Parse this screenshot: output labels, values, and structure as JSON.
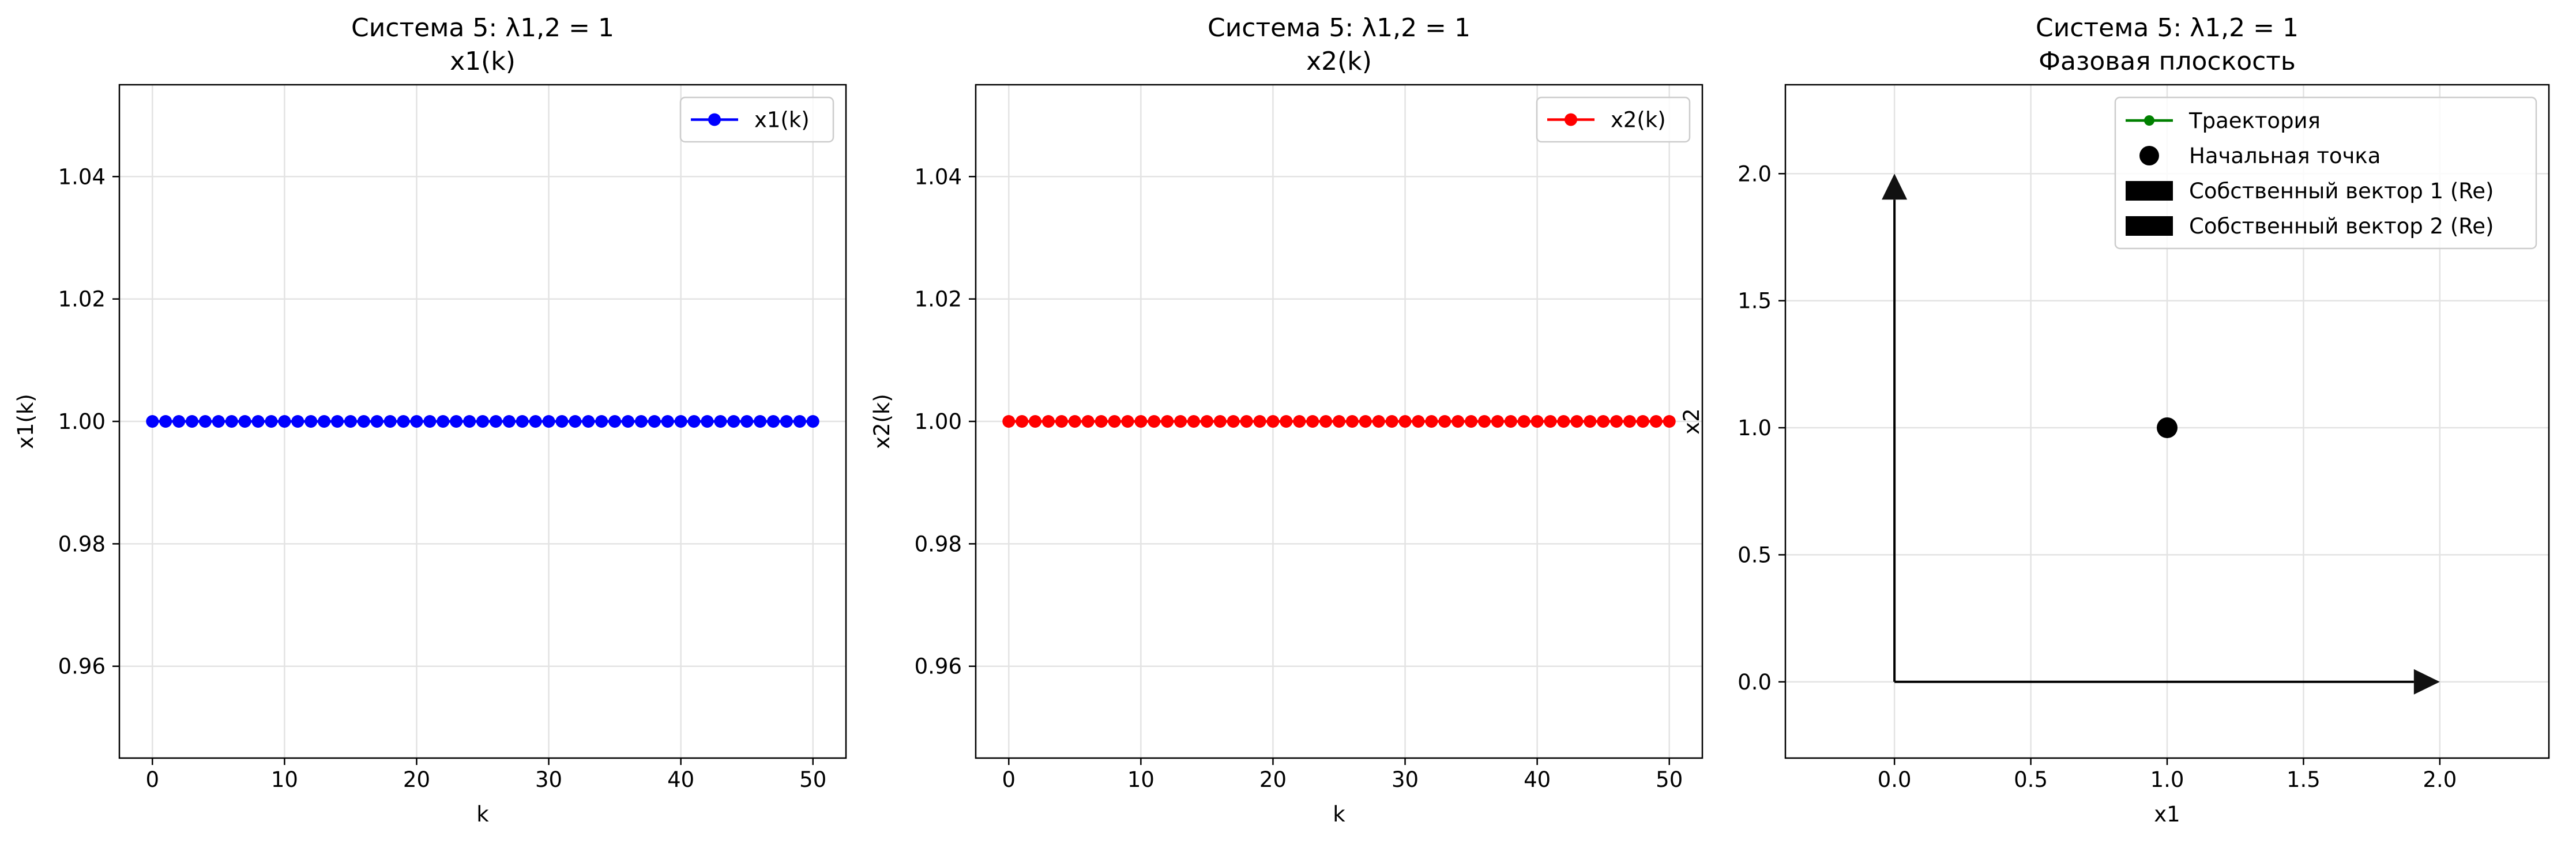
{
  "chart_data": [
    {
      "type": "line",
      "title": "Система 5: λ1,2 = 1",
      "subtitle": "x1(k)",
      "xlabel": "k",
      "ylabel": "x1(k)",
      "xlim": [
        -2.5,
        52.5
      ],
      "ylim": [
        0.945,
        1.055
      ],
      "xticks": [
        0,
        10,
        20,
        30,
        40,
        50
      ],
      "xtick_labels": [
        "0",
        "10",
        "20",
        "30",
        "40",
        "50"
      ],
      "yticks": [
        0.96,
        0.98,
        1.0,
        1.02,
        1.04
      ],
      "ytick_labels": [
        "0.96",
        "0.98",
        "1.00",
        "1.02",
        "1.04"
      ],
      "grid": true,
      "legend_position": "top-right",
      "series": [
        {
          "name": "x1(k)",
          "color": "#0000ff",
          "marker": "circle",
          "x": [
            0,
            1,
            2,
            3,
            4,
            5,
            6,
            7,
            8,
            9,
            10,
            11,
            12,
            13,
            14,
            15,
            16,
            17,
            18,
            19,
            20,
            21,
            22,
            23,
            24,
            25,
            26,
            27,
            28,
            29,
            30,
            31,
            32,
            33,
            34,
            35,
            36,
            37,
            38,
            39,
            40,
            41,
            42,
            43,
            44,
            45,
            46,
            47,
            48,
            49,
            50
          ],
          "y": [
            1,
            1,
            1,
            1,
            1,
            1,
            1,
            1,
            1,
            1,
            1,
            1,
            1,
            1,
            1,
            1,
            1,
            1,
            1,
            1,
            1,
            1,
            1,
            1,
            1,
            1,
            1,
            1,
            1,
            1,
            1,
            1,
            1,
            1,
            1,
            1,
            1,
            1,
            1,
            1,
            1,
            1,
            1,
            1,
            1,
            1,
            1,
            1,
            1,
            1,
            1
          ]
        }
      ]
    },
    {
      "type": "line",
      "title": "Система 5: λ1,2 = 1",
      "subtitle": "x2(k)",
      "xlabel": "k",
      "ylabel": "x2(k)",
      "xlim": [
        -2.5,
        52.5
      ],
      "ylim": [
        0.945,
        1.055
      ],
      "xticks": [
        0,
        10,
        20,
        30,
        40,
        50
      ],
      "xtick_labels": [
        "0",
        "10",
        "20",
        "30",
        "40",
        "50"
      ],
      "yticks": [
        0.96,
        0.98,
        1.0,
        1.02,
        1.04
      ],
      "ytick_labels": [
        "0.96",
        "0.98",
        "1.00",
        "1.02",
        "1.04"
      ],
      "grid": true,
      "legend_position": "top-right",
      "series": [
        {
          "name": "x2(k)",
          "color": "#ff0000",
          "marker": "circle",
          "x": [
            0,
            1,
            2,
            3,
            4,
            5,
            6,
            7,
            8,
            9,
            10,
            11,
            12,
            13,
            14,
            15,
            16,
            17,
            18,
            19,
            20,
            21,
            22,
            23,
            24,
            25,
            26,
            27,
            28,
            29,
            30,
            31,
            32,
            33,
            34,
            35,
            36,
            37,
            38,
            39,
            40,
            41,
            42,
            43,
            44,
            45,
            46,
            47,
            48,
            49,
            50
          ],
          "y": [
            1,
            1,
            1,
            1,
            1,
            1,
            1,
            1,
            1,
            1,
            1,
            1,
            1,
            1,
            1,
            1,
            1,
            1,
            1,
            1,
            1,
            1,
            1,
            1,
            1,
            1,
            1,
            1,
            1,
            1,
            1,
            1,
            1,
            1,
            1,
            1,
            1,
            1,
            1,
            1,
            1,
            1,
            1,
            1,
            1,
            1,
            1,
            1,
            1,
            1,
            1
          ]
        }
      ]
    },
    {
      "type": "scatter",
      "title": "Система 5: λ1,2 = 1",
      "subtitle": "Фазовая плоскость",
      "xlabel": "x1",
      "ylabel": "x2",
      "xlim": [
        -0.4,
        2.4
      ],
      "ylim": [
        -0.3,
        2.35
      ],
      "xticks": [
        0.0,
        0.5,
        1.0,
        1.5,
        2.0
      ],
      "xtick_labels": [
        "0.0",
        "0.5",
        "1.0",
        "1.5",
        "2.0"
      ],
      "yticks": [
        0.0,
        0.5,
        1.0,
        1.5,
        2.0
      ],
      "ytick_labels": [
        "0.0",
        "0.5",
        "1.0",
        "1.5",
        "2.0"
      ],
      "grid": true,
      "legend_position": "top-right",
      "trajectory": {
        "name": "Траектория",
        "color": "#008000",
        "x": [
          1
        ],
        "y": [
          1
        ]
      },
      "start_point": {
        "name": "Начальная точка",
        "color": "#000000",
        "x": 1,
        "y": 1
      },
      "vectors": [
        {
          "name": "Собственный вектор 1 (Re)",
          "color": "#000000",
          "x0": 0,
          "y0": 0,
          "dx": 2,
          "dy": 0
        },
        {
          "name": "Собственный вектор 2 (Re)",
          "color": "#000000",
          "x0": 0,
          "y0": 0,
          "dx": 0,
          "dy": 2
        }
      ]
    }
  ]
}
